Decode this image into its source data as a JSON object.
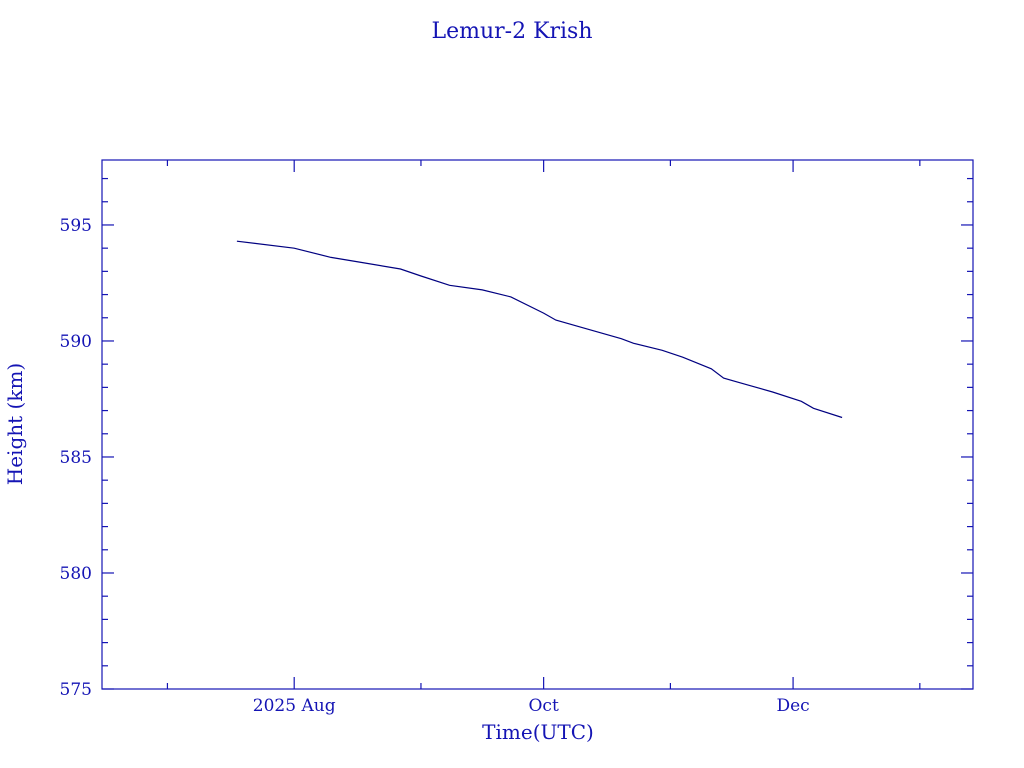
{
  "chart_data": {
    "type": "line",
    "title": "Lemur-2 Krish",
    "xlabel": "Time(UTC)",
    "ylabel": "Height (km)",
    "xlim": [
      "2025-06-15",
      "2026-01-14"
    ],
    "ylim": [
      575,
      597.8
    ],
    "x_ticks": [
      {
        "date": "2025-08-01",
        "label": "2025 Aug"
      },
      {
        "date": "2025-10-01",
        "label": "Oct"
      },
      {
        "date": "2025-12-01",
        "label": "Dec"
      }
    ],
    "x_minor_ticks": [
      "2025-07-01",
      "2025-09-01",
      "2025-11-01",
      "2026-01-01"
    ],
    "y_ticks": [
      575,
      580,
      585,
      590,
      595
    ],
    "y_tick_labels": [
      "575",
      "580",
      "585",
      "590",
      "595"
    ],
    "y_minor_step": 1,
    "grid": false,
    "colors": {
      "axes": "#1414b4",
      "line": "#000080"
    },
    "series": [
      {
        "x": [
          "2025-07-18",
          "2025-08-01",
          "2025-08-10",
          "2025-08-17",
          "2025-08-27",
          "2025-09-01",
          "2025-09-08",
          "2025-09-16",
          "2025-09-23",
          "2025-10-01",
          "2025-10-04",
          "2025-10-10",
          "2025-10-20",
          "2025-10-23",
          "2025-10-30",
          "2025-11-04",
          "2025-11-11",
          "2025-11-14",
          "2025-11-20",
          "2025-11-26",
          "2025-12-03",
          "2025-12-06",
          "2025-12-13"
        ],
        "y": [
          594.3,
          594.0,
          593.6,
          593.4,
          593.1,
          592.8,
          592.4,
          592.2,
          591.9,
          591.2,
          590.9,
          590.6,
          590.1,
          589.9,
          589.6,
          589.3,
          588.8,
          588.4,
          588.1,
          587.8,
          587.4,
          587.1,
          586.7
        ]
      }
    ]
  }
}
